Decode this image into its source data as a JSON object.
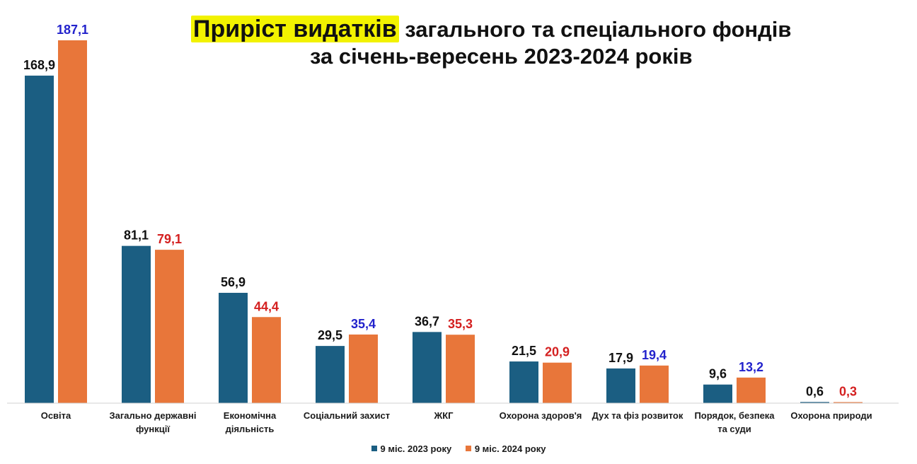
{
  "title": {
    "highlight": "Приріст видатків",
    "rest_line1": " загального та спеціального фондів",
    "line2": "за січень-вересень 2023-2024 років"
  },
  "colors": {
    "series_2023": "#1b5e82",
    "series_2024": "#e8763a",
    "label_default": "#111111",
    "label_increase": "#2222cc",
    "label_decrease": "#d42020",
    "highlight": "#f2f200"
  },
  "chart_data": {
    "type": "bar",
    "categories": [
      [
        "Освіта"
      ],
      [
        "Загально державні",
        "функції"
      ],
      [
        "Економічна",
        "діяльність"
      ],
      [
        "Соціальний захист"
      ],
      [
        "ЖКГ"
      ],
      [
        "Охорона здоров'я"
      ],
      [
        "Дух та фіз розвиток"
      ],
      [
        "Порядок, безпека",
        "та суди"
      ],
      [
        "Охорона природи"
      ]
    ],
    "series": [
      {
        "name": "9 міс. 2023 року",
        "values": [
          168.9,
          81.1,
          56.9,
          29.5,
          36.7,
          21.5,
          17.9,
          9.6,
          0.6
        ],
        "labels": [
          "168,9",
          "81,1",
          "56,9",
          "29,5",
          "36,7",
          "21,5",
          "17,9",
          "9,6",
          "0,6"
        ]
      },
      {
        "name": "9 міс. 2024 року",
        "values": [
          187.1,
          79.1,
          44.4,
          35.4,
          35.3,
          20.9,
          19.4,
          13.2,
          0.3
        ],
        "labels": [
          "187,1",
          "79,1",
          "44,4",
          "35,4",
          "35,3",
          "20,9",
          "19,4",
          "13,2",
          "0,3"
        ]
      }
    ],
    "ylim": [
      0,
      190
    ],
    "grid": false,
    "legend_position": "bottom-center"
  }
}
